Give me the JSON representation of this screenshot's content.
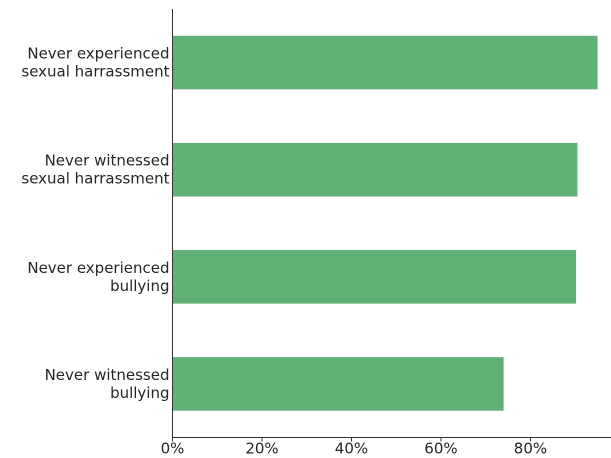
{
  "chart_data": {
    "type": "bar",
    "orientation": "horizontal",
    "categories": [
      [
        "Never experienced",
        "sexual harrassment"
      ],
      [
        "Never witnessed",
        "sexual harrassment"
      ],
      [
        "Never experienced",
        "bullying"
      ],
      [
        "Never witnessed",
        "bullying"
      ]
    ],
    "values": [
      95,
      90.5,
      90.2,
      74
    ],
    "xlim": [
      0,
      98
    ],
    "xticks": [
      0,
      20,
      40,
      60,
      80
    ],
    "xtick_labels": [
      "0%",
      "20%",
      "40%",
      "60%",
      "80%"
    ],
    "bar_color": "#61b076",
    "grid": false,
    "legend": "none"
  }
}
